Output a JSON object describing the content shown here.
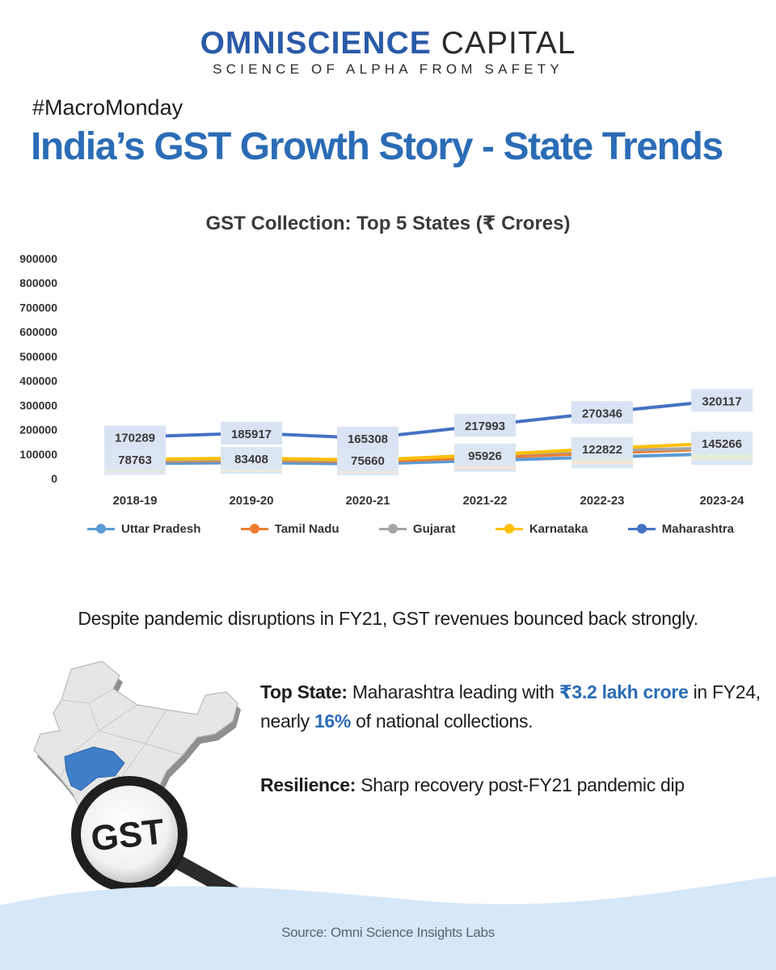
{
  "brand": {
    "name_bold": "OMNISCIENCE",
    "name_light": "CAPITAL",
    "tagline": "SCIENCE OF ALPHA FROM SAFETY"
  },
  "hashtag": "#MacroMonday",
  "headline": "India’s GST Growth Story - State Trends",
  "chart_data": {
    "type": "line",
    "title": "GST Collection: Top 5 States (₹ Crores)",
    "categories": [
      "2018-19",
      "2019-20",
      "2020-21",
      "2021-22",
      "2022-23",
      "2023-24"
    ],
    "ylim": [
      0,
      900000
    ],
    "yticks": [
      0,
      100000,
      200000,
      300000,
      400000,
      500000,
      600000,
      700000,
      800000,
      900000
    ],
    "grid": false,
    "legend_position": "bottom",
    "series": [
      {
        "name": "Uttar Pradesh",
        "color": "#5b9bd5",
        "label_bg": "#dae7f5",
        "values": [
          61337,
          65281,
          59721,
          73865,
          87970,
          101693
        ]
      },
      {
        "name": "Tamil Nadu",
        "color": "#ed7d31",
        "label_bg": "#fbe3d6",
        "values": [
          70562,
          74430,
          69121,
          85492,
          104377,
          121329
        ]
      },
      {
        "name": "Gujarat",
        "color": "#a5a5a5",
        "label_bg": "#e2efd9",
        "values": [
          73440,
          78923,
          74346,
          97155,
          114221,
          125168
        ]
      },
      {
        "name": "Karnataka",
        "color": "#ffc000",
        "label_bg": "#dce6f2",
        "values": [
          78763,
          83408,
          75660,
          95926,
          122822,
          145266
        ]
      },
      {
        "name": "Maharashtra",
        "color": "#4472c4",
        "label_bg": "#dae3f3",
        "values": [
          170289,
          185917,
          165308,
          217993,
          270346,
          320117
        ]
      }
    ]
  },
  "summary": "Despite pandemic disruptions in FY21, GST revenues bounced back strongly.",
  "points": {
    "top_state": {
      "label": "Top State:",
      "text1": " Maharashtra leading with ",
      "hl1": "₹3.2 lakh crore",
      "text2": " in FY24, nearly ",
      "hl2": "16%",
      "text3": " of national collections."
    },
    "resilience": {
      "label": "Resilience:",
      "text": " Sharp recovery post-FY21 pandemic dip"
    }
  },
  "illustration": {
    "badge_text": "GST"
  },
  "source": "Source: Omni Science Insights Labs"
}
